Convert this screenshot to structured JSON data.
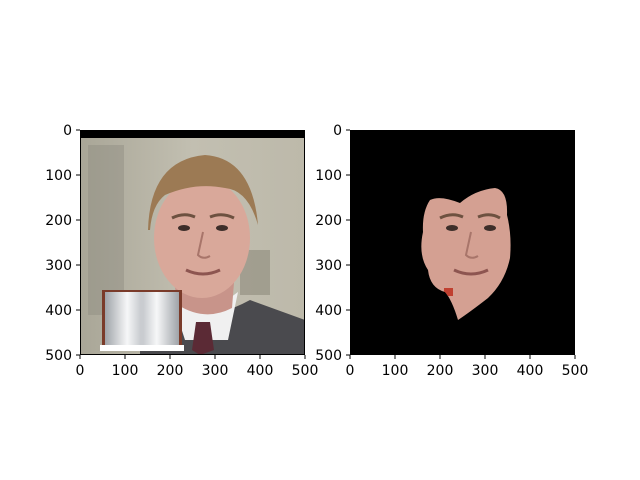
{
  "figure": {
    "panels": [
      {
        "id": "left",
        "content": "photo of a man with a book graphic overlay",
        "x_ticks": [
          "0",
          "100",
          "200",
          "300",
          "400",
          "500"
        ],
        "y_ticks": [
          "0",
          "100",
          "200",
          "300",
          "400",
          "500"
        ]
      },
      {
        "id": "right",
        "content": "segmented face on black background",
        "x_ticks": [
          "0",
          "100",
          "200",
          "300",
          "400",
          "500"
        ],
        "y_ticks": [
          "0",
          "100",
          "200",
          "300",
          "400",
          "500"
        ]
      }
    ],
    "colors": {
      "skin": "#d9a89a",
      "skin_shadow": "#b27f72",
      "hair": "#9c7a54",
      "background_wall": "#b9b5a6",
      "suit": "#4a4a4e",
      "mask_background": "#000000"
    }
  }
}
